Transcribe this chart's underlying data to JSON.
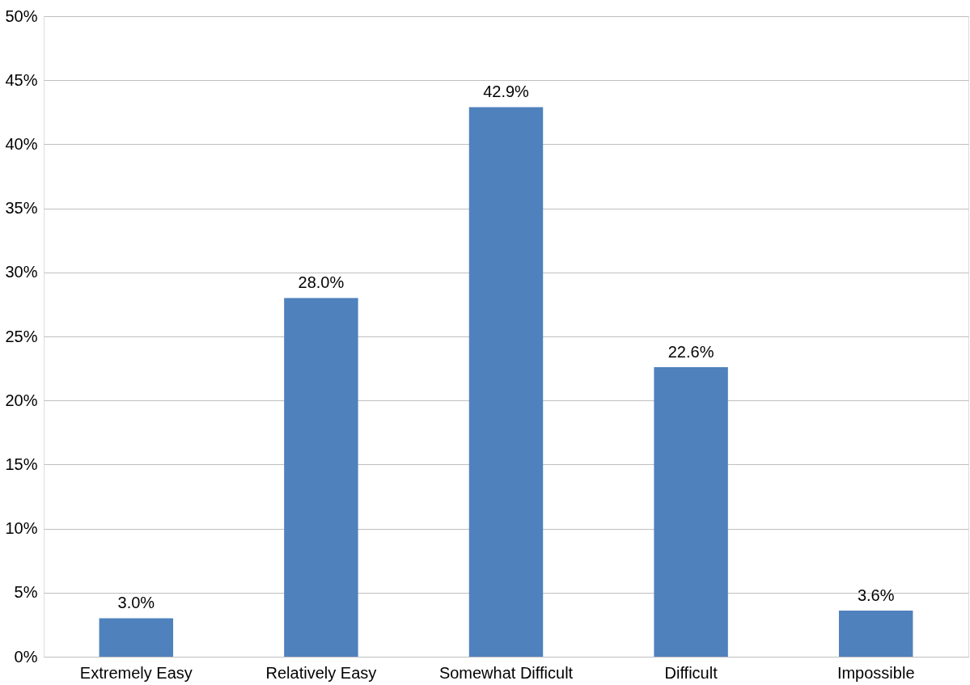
{
  "chart_data": {
    "type": "bar",
    "categories": [
      "Extremely Easy",
      "Relatively Easy",
      "Somewhat Difficult",
      "Difficult",
      "Impossible"
    ],
    "values": [
      3.0,
      28.0,
      42.9,
      22.6,
      3.6
    ],
    "value_labels": [
      "3.0%",
      "28.0%",
      "42.9%",
      "22.6%",
      "3.6%"
    ],
    "color": "#4f81bd",
    "ylim": [
      0,
      50
    ],
    "yticks": [
      {
        "value": 0,
        "label": "0%"
      },
      {
        "value": 5,
        "label": "5%"
      },
      {
        "value": 10,
        "label": "10%"
      },
      {
        "value": 15,
        "label": "15%"
      },
      {
        "value": 20,
        "label": "20%"
      },
      {
        "value": 25,
        "label": "25%"
      },
      {
        "value": 30,
        "label": "30%"
      },
      {
        "value": 35,
        "label": "35%"
      },
      {
        "value": 40,
        "label": "40%"
      },
      {
        "value": 45,
        "label": "45%"
      },
      {
        "value": 50,
        "label": "50%"
      }
    ],
    "grid": "y"
  }
}
